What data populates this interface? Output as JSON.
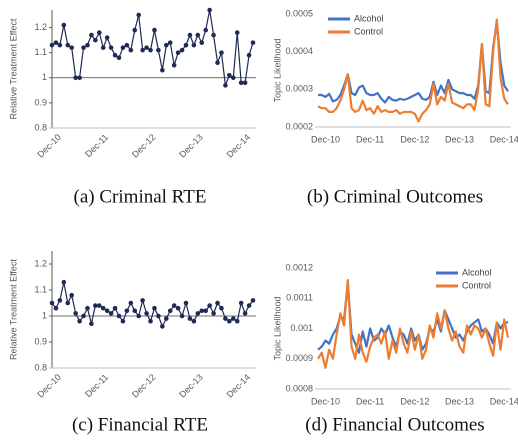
{
  "chart_data": [
    {
      "type": "line",
      "markers": true,
      "caption": "(a) Criminal RTE",
      "ylabel": "Relative Treatment Effect",
      "color": "#1f2a55",
      "categories": [
        null,
        null,
        "Dec-10",
        null,
        null,
        null,
        null,
        null,
        null,
        null,
        null,
        null,
        null,
        null,
        "Dec-11",
        null,
        null,
        null,
        null,
        null,
        null,
        null,
        null,
        null,
        null,
        null,
        "Dec-12",
        null,
        null,
        null,
        null,
        null,
        null,
        null,
        null,
        null,
        null,
        null,
        "Dec-13",
        null,
        null,
        null,
        null,
        null,
        null,
        null,
        null,
        null,
        null,
        null,
        "Dec-14",
        null
      ],
      "values": [
        1.13,
        1.14,
        1.13,
        1.21,
        1.13,
        1.12,
        1.0,
        1.0,
        1.12,
        1.13,
        1.17,
        1.15,
        1.18,
        1.12,
        1.16,
        1.12,
        1.09,
        1.08,
        1.12,
        1.13,
        1.11,
        1.19,
        1.25,
        1.11,
        1.12,
        1.11,
        1.19,
        1.11,
        1.03,
        1.13,
        1.14,
        1.05,
        1.1,
        1.11,
        1.13,
        1.17,
        1.13,
        1.17,
        1.14,
        1.19,
        1.27,
        1.17,
        1.06,
        1.1,
        0.97,
        1.01,
        1.0,
        1.18,
        0.98,
        0.98,
        1.09,
        1.14
      ],
      "ylim": [
        0.8,
        1.27
      ],
      "yticks": [
        0.8,
        0.9,
        1,
        1.1,
        1.2
      ],
      "hline": 1
    },
    {
      "type": "line",
      "caption": "(b) Criminal Outcomes",
      "ylabel": "Topic Likelihood",
      "legend": "upper left",
      "categories": [
        null,
        null,
        "Dec-10",
        null,
        null,
        null,
        null,
        null,
        null,
        null,
        null,
        null,
        null,
        null,
        "Dec-11",
        null,
        null,
        null,
        null,
        null,
        null,
        null,
        null,
        null,
        null,
        null,
        "Dec-12",
        null,
        null,
        null,
        null,
        null,
        null,
        null,
        null,
        null,
        null,
        null,
        "Dec-13",
        null,
        null,
        null,
        null,
        null,
        null,
        null,
        null,
        null,
        null,
        null,
        "Dec-14",
        null
      ],
      "series": [
        {
          "name": "Alcohol",
          "color": "#4472c4",
          "values": [
            0.000285,
            0.000285,
            0.00028,
            0.000288,
            0.000268,
            0.000272,
            0.000285,
            0.00031,
            0.00034,
            0.00029,
            0.000285,
            0.000305,
            0.00031,
            0.00029,
            0.000285,
            0.000285,
            0.00029,
            0.000275,
            0.000265,
            0.00028,
            0.000272,
            0.00027,
            0.000275,
            0.000272,
            0.000275,
            0.00028,
            0.000285,
            0.00029,
            0.000275,
            0.000272,
            0.00028,
            0.00032,
            0.000285,
            0.00031,
            0.00029,
            0.000325,
            0.0003,
            0.000295,
            0.00029,
            0.00029,
            0.000285,
            0.000285,
            0.000275,
            0.00031,
            0.00042,
            0.000295,
            0.00029,
            0.00041,
            0.00048,
            0.00037,
            0.00031,
            0.000295
          ]
        },
        {
          "name": "Control",
          "color": "#ed7d31",
          "values": [
            0.000255,
            0.00025,
            0.00025,
            0.00024,
            0.00024,
            0.00025,
            0.00027,
            0.0003,
            0.00034,
            0.00025,
            0.00024,
            0.000245,
            0.00027,
            0.000245,
            0.00025,
            0.000235,
            0.000255,
            0.00024,
            0.000245,
            0.00024,
            0.00024,
            0.000245,
            0.000235,
            0.00024,
            0.00024,
            0.00024,
            0.000235,
            0.000215,
            0.000235,
            0.000245,
            0.00026,
            0.000315,
            0.00026,
            0.00028,
            0.00027,
            0.000315,
            0.000265,
            0.00026,
            0.000255,
            0.00025,
            0.00026,
            0.00026,
            0.000245,
            0.0003,
            0.00042,
            0.00026,
            0.000255,
            0.0004,
            0.000485,
            0.00033,
            0.000275,
            0.00026
          ]
        }
      ],
      "ylim": [
        0.0002,
        0.0005
      ],
      "yticks": [
        0.0002,
        0.0003,
        0.0004,
        0.0005
      ]
    },
    {
      "type": "line",
      "markers": true,
      "caption": "(c) Financial RTE",
      "ylabel": "Relative Treatment Effect",
      "color": "#1f2a55",
      "categories": [
        null,
        null,
        "Dec-10",
        null,
        null,
        null,
        null,
        null,
        null,
        null,
        null,
        null,
        null,
        null,
        "Dec-11",
        null,
        null,
        null,
        null,
        null,
        null,
        null,
        null,
        null,
        null,
        null,
        "Dec-12",
        null,
        null,
        null,
        null,
        null,
        null,
        null,
        null,
        null,
        null,
        null,
        "Dec-13",
        null,
        null,
        null,
        null,
        null,
        null,
        null,
        null,
        null,
        null,
        null,
        "Dec-14",
        null
      ],
      "values": [
        1.05,
        1.03,
        1.06,
        1.13,
        1.05,
        1.08,
        1.01,
        0.98,
        1.0,
        1.03,
        0.97,
        1.04,
        1.04,
        1.03,
        1.02,
        1.01,
        1.03,
        1.0,
        0.98,
        1.02,
        1.05,
        1.02,
        1.0,
        1.06,
        1.01,
        0.98,
        1.03,
        1.0,
        0.96,
        0.99,
        1.02,
        1.04,
        1.03,
        1.0,
        1.05,
        0.99,
        0.98,
        1.01,
        1.02,
        1.02,
        1.04,
        1.01,
        1.05,
        1.03,
        0.99,
        0.98,
        0.99,
        0.98,
        1.05,
        1.01,
        1.04,
        1.06
      ],
      "ylim": [
        0.8,
        1.25
      ],
      "yticks": [
        0.8,
        0.9,
        1,
        1.1,
        1.2
      ],
      "hline": 1
    },
    {
      "type": "line",
      "caption": "(d) Financial Outcomes",
      "ylabel": "Topic Likelihood",
      "legend": "upper right",
      "categories": [
        null,
        null,
        "Dec-10",
        null,
        null,
        null,
        null,
        null,
        null,
        null,
        null,
        null,
        null,
        null,
        "Dec-11",
        null,
        null,
        null,
        null,
        null,
        null,
        null,
        null,
        null,
        null,
        null,
        "Dec-12",
        null,
        null,
        null,
        null,
        null,
        null,
        null,
        null,
        null,
        null,
        null,
        "Dec-13",
        null,
        null,
        null,
        null,
        null,
        null,
        null,
        null,
        null,
        null,
        null,
        "Dec-14",
        null
      ],
      "series": [
        {
          "name": "Alcohol",
          "color": "#4472c4",
          "values": [
            0.00093,
            0.00094,
            0.00096,
            0.00095,
            0.00098,
            0.001,
            0.00104,
            0.00103,
            0.00115,
            0.00098,
            0.00095,
            0.00092,
            0.00099,
            0.00094,
            0.001,
            0.00096,
            0.00097,
            0.001,
            0.00098,
            0.00101,
            0.00097,
            0.00094,
            0.00099,
            0.00098,
            0.00095,
            0.001,
            0.00096,
            0.00098,
            0.00093,
            0.00095,
            0.001,
            0.00099,
            0.00103,
            0.00099,
            0.00106,
            0.00103,
            0.001,
            0.00097,
            0.00098,
            0.00096,
            0.00099,
            0.00101,
            0.00102,
            0.00103,
            0.00099,
            0.001,
            0.00098,
            0.00095,
            0.00102,
            0.001,
            0.00102,
            0.00102
          ]
        },
        {
          "name": "Control",
          "color": "#ed7d31",
          "values": [
            0.0009,
            0.00092,
            0.00087,
            0.00093,
            0.0009,
            0.00098,
            0.00105,
            0.00101,
            0.00116,
            0.00094,
            0.0009,
            0.00098,
            0.00092,
            0.00089,
            0.00094,
            0.00097,
            0.00098,
            0.00095,
            0.00099,
            0.0009,
            0.00096,
            0.00092,
            0.001,
            0.00095,
            0.00092,
            0.00099,
            0.00093,
            0.00098,
            0.0009,
            0.00093,
            0.00101,
            0.00097,
            0.00105,
            0.001,
            0.00106,
            0.001,
            0.00096,
            0.00099,
            0.00094,
            0.00092,
            0.00101,
            0.00098,
            0.00101,
            0.001,
            0.00097,
            0.001,
            0.00095,
            0.00091,
            0.00102,
            0.00093,
            0.00103,
            0.00097
          ]
        }
      ],
      "ylim": [
        0.0008,
        0.0012
      ],
      "yticks": [
        0.0008,
        0.0009,
        0.001,
        0.0011,
        0.0012
      ]
    }
  ]
}
